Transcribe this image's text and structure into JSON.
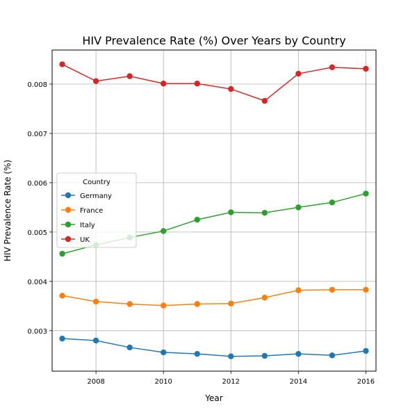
{
  "chart_data": {
    "type": "line",
    "title": "HIV Prevalence Rate (%) Over Years by Country",
    "xlabel": "Year",
    "ylabel": "HIV Prevalence Rate (%)",
    "x": [
      2007,
      2008,
      2009,
      2010,
      2011,
      2012,
      2013,
      2014,
      2015,
      2016
    ],
    "xlim": [
      2006.7,
      2016.3
    ],
    "ylim": [
      0.00218,
      0.00869
    ],
    "x_ticks": [
      2008,
      2010,
      2012,
      2014,
      2016
    ],
    "y_ticks": [
      0.003,
      0.004,
      0.005,
      0.006,
      0.007,
      0.008
    ],
    "x_tick_labels": [
      "2008",
      "2010",
      "2012",
      "2014",
      "2016"
    ],
    "y_tick_labels": [
      "0.003",
      "0.004",
      "0.005",
      "0.006",
      "0.007",
      "0.008"
    ],
    "grid": true,
    "legend": {
      "title": "Country",
      "position": "center-left"
    },
    "series": [
      {
        "name": "Germany",
        "color": "#1f77b4",
        "values": [
          0.00284,
          0.0028,
          0.00266,
          0.00256,
          0.00253,
          0.00248,
          0.00249,
          0.00253,
          0.0025,
          0.00259
        ]
      },
      {
        "name": "France",
        "color": "#ff7f0e",
        "values": [
          0.00371,
          0.00359,
          0.00354,
          0.00351,
          0.00354,
          0.00355,
          0.00367,
          0.00382,
          0.00383,
          0.00383
        ]
      },
      {
        "name": "Italy",
        "color": "#2ca02c",
        "values": [
          0.00456,
          0.00474,
          0.00489,
          0.00502,
          0.00525,
          0.0054,
          0.00539,
          0.0055,
          0.0056,
          0.00578
        ]
      },
      {
        "name": "UK",
        "color": "#d62728",
        "values": [
          0.0084,
          0.00806,
          0.00816,
          0.00801,
          0.00801,
          0.0079,
          0.00766,
          0.00821,
          0.00834,
          0.00831
        ]
      }
    ]
  }
}
